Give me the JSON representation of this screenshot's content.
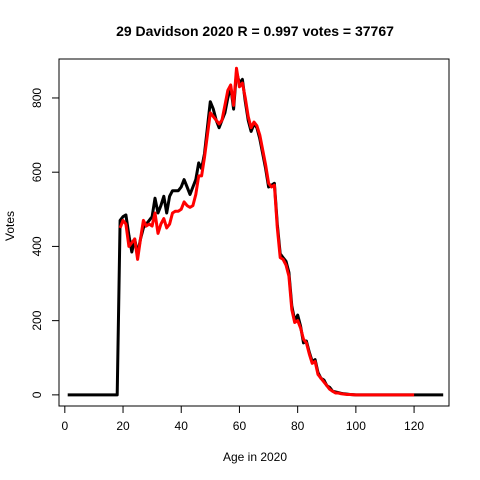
{
  "chart_data": {
    "type": "line",
    "title": "29 Davidson 2020 R = 0.997 votes = 37767",
    "xlabel": "Age in 2020",
    "ylabel": "Votes",
    "xlim": [
      -2,
      132
    ],
    "ylim": [
      -30,
      905
    ],
    "xticks": [
      0,
      20,
      40,
      60,
      80,
      100,
      120
    ],
    "yticks": [
      0,
      200,
      400,
      600,
      800
    ],
    "grid": false,
    "legend": "none",
    "series": [
      {
        "color": "#000000",
        "points": [
          [
            1,
            0
          ],
          [
            18,
            0
          ],
          [
            19,
            470
          ],
          [
            20,
            480
          ],
          [
            21,
            485
          ],
          [
            22,
            430
          ],
          [
            23,
            385
          ],
          [
            24,
            420
          ],
          [
            25,
            380
          ],
          [
            26,
            420
          ],
          [
            27,
            450
          ],
          [
            28,
            460
          ],
          [
            29,
            470
          ],
          [
            30,
            480
          ],
          [
            31,
            530
          ],
          [
            32,
            490
          ],
          [
            33,
            510
          ],
          [
            34,
            535
          ],
          [
            35,
            490
          ],
          [
            36,
            535
          ],
          [
            37,
            550
          ],
          [
            38,
            550
          ],
          [
            39,
            550
          ],
          [
            40,
            560
          ],
          [
            41,
            580
          ],
          [
            42,
            560
          ],
          [
            43,
            540
          ],
          [
            44,
            560
          ],
          [
            45,
            580
          ],
          [
            46,
            625
          ],
          [
            47,
            610
          ],
          [
            48,
            650
          ],
          [
            49,
            720
          ],
          [
            50,
            790
          ],
          [
            51,
            770
          ],
          [
            52,
            740
          ],
          [
            53,
            720
          ],
          [
            54,
            740
          ],
          [
            55,
            760
          ],
          [
            56,
            800
          ],
          [
            57,
            830
          ],
          [
            58,
            770
          ],
          [
            59,
            870
          ],
          [
            60,
            840
          ],
          [
            61,
            850
          ],
          [
            62,
            790
          ],
          [
            63,
            740
          ],
          [
            64,
            710
          ],
          [
            65,
            730
          ],
          [
            66,
            720
          ],
          [
            67,
            690
          ],
          [
            68,
            650
          ],
          [
            69,
            610
          ],
          [
            70,
            560
          ],
          [
            71,
            565
          ],
          [
            72,
            570
          ],
          [
            73,
            460
          ],
          [
            74,
            380
          ],
          [
            75,
            370
          ],
          [
            76,
            360
          ],
          [
            77,
            330
          ],
          [
            78,
            240
          ],
          [
            79,
            200
          ],
          [
            80,
            215
          ],
          [
            81,
            185
          ],
          [
            82,
            140
          ],
          [
            83,
            145
          ],
          [
            84,
            115
          ],
          [
            85,
            90
          ],
          [
            86,
            95
          ],
          [
            87,
            60
          ],
          [
            88,
            45
          ],
          [
            89,
            40
          ],
          [
            90,
            25
          ],
          [
            91,
            20
          ],
          [
            92,
            10
          ],
          [
            93,
            8
          ],
          [
            94,
            6
          ],
          [
            95,
            4
          ],
          [
            96,
            3
          ],
          [
            97,
            2
          ],
          [
            98,
            1
          ],
          [
            100,
            0
          ],
          [
            110,
            0
          ],
          [
            130,
            0
          ]
        ]
      },
      {
        "color": "#ff0000",
        "points": [
          [
            19,
            450
          ],
          [
            20,
            470
          ],
          [
            21,
            460
          ],
          [
            22,
            400
          ],
          [
            23,
            410
          ],
          [
            24,
            420
          ],
          [
            25,
            365
          ],
          [
            26,
            420
          ],
          [
            27,
            470
          ],
          [
            28,
            455
          ],
          [
            29,
            460
          ],
          [
            30,
            455
          ],
          [
            31,
            490
          ],
          [
            32,
            435
          ],
          [
            33,
            460
          ],
          [
            34,
            475
          ],
          [
            35,
            450
          ],
          [
            36,
            460
          ],
          [
            37,
            490
          ],
          [
            38,
            495
          ],
          [
            39,
            495
          ],
          [
            40,
            500
          ],
          [
            41,
            520
          ],
          [
            42,
            510
          ],
          [
            43,
            505
          ],
          [
            44,
            510
          ],
          [
            45,
            540
          ],
          [
            46,
            590
          ],
          [
            47,
            590
          ],
          [
            48,
            640
          ],
          [
            49,
            700
          ],
          [
            50,
            760
          ],
          [
            51,
            750
          ],
          [
            52,
            740
          ],
          [
            53,
            730
          ],
          [
            54,
            740
          ],
          [
            55,
            780
          ],
          [
            56,
            820
          ],
          [
            57,
            835
          ],
          [
            58,
            780
          ],
          [
            59,
            880
          ],
          [
            60,
            830
          ],
          [
            61,
            840
          ],
          [
            62,
            800
          ],
          [
            63,
            750
          ],
          [
            64,
            720
          ],
          [
            65,
            735
          ],
          [
            66,
            725
          ],
          [
            67,
            700
          ],
          [
            68,
            660
          ],
          [
            69,
            620
          ],
          [
            70,
            570
          ],
          [
            71,
            560
          ],
          [
            72,
            565
          ],
          [
            73,
            450
          ],
          [
            74,
            370
          ],
          [
            75,
            365
          ],
          [
            76,
            350
          ],
          [
            77,
            320
          ],
          [
            78,
            230
          ],
          [
            79,
            195
          ],
          [
            80,
            200
          ],
          [
            81,
            180
          ],
          [
            82,
            150
          ],
          [
            83,
            140
          ],
          [
            84,
            110
          ],
          [
            85,
            85
          ],
          [
            86,
            90
          ],
          [
            87,
            55
          ],
          [
            88,
            45
          ],
          [
            89,
            35
          ],
          [
            90,
            25
          ],
          [
            91,
            15
          ],
          [
            92,
            10
          ],
          [
            93,
            5
          ],
          [
            94,
            5
          ],
          [
            95,
            3
          ],
          [
            96,
            2
          ],
          [
            97,
            1
          ],
          [
            98,
            1
          ],
          [
            100,
            0
          ],
          [
            105,
            0
          ],
          [
            110,
            0
          ],
          [
            120,
            0
          ]
        ]
      }
    ]
  }
}
